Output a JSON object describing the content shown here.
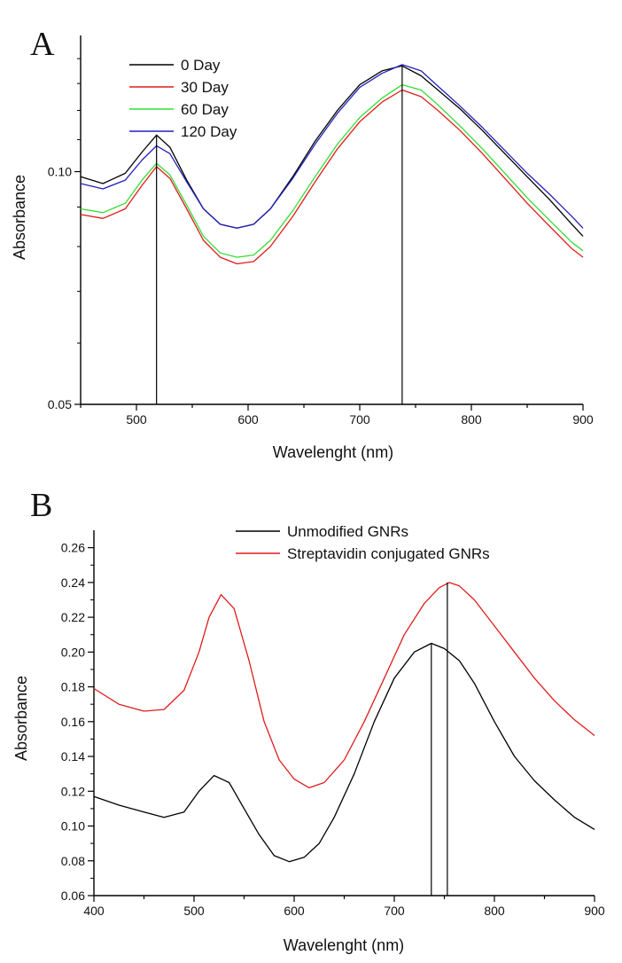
{
  "chart_data": [
    {
      "type": "line",
      "panel": "A",
      "xlabel": "Wavelenght (nm)",
      "ylabel": "Absorbance",
      "xlim": [
        450,
        900
      ],
      "ylim": [
        0.05,
        0.15
      ],
      "y_scale": "log",
      "x_ticks": [
        500,
        600,
        700,
        800,
        900
      ],
      "y_ticks": [
        0.05,
        0.1
      ],
      "y_tick_labels": [
        "0.05",
        "0.10"
      ],
      "legend_position": "top-left",
      "series": [
        {
          "name": "0 Day",
          "color": "#000000",
          "x": [
            450,
            470,
            490,
            505,
            518,
            530,
            545,
            560,
            575,
            590,
            605,
            620,
            640,
            660,
            680,
            700,
            720,
            738,
            755,
            770,
            790,
            810,
            830,
            850,
            870,
            890,
            900
          ],
          "y": [
            0.0985,
            0.0965,
            0.0995,
            0.106,
            0.1115,
            0.1075,
            0.0975,
            0.0895,
            0.0855,
            0.0845,
            0.0855,
            0.0895,
            0.0985,
            0.1095,
            0.12,
            0.1295,
            0.135,
            0.137,
            0.133,
            0.1275,
            0.1205,
            0.113,
            0.1055,
            0.0985,
            0.092,
            0.0855,
            0.0825
          ]
        },
        {
          "name": "30 Day",
          "color": "#e01c1c",
          "x": [
            450,
            470,
            490,
            505,
            518,
            530,
            545,
            560,
            575,
            590,
            605,
            620,
            640,
            660,
            680,
            700,
            720,
            738,
            755,
            770,
            790,
            810,
            830,
            850,
            870,
            890,
            900
          ],
          "y": [
            0.088,
            0.087,
            0.0895,
            0.096,
            0.1015,
            0.098,
            0.0895,
            0.0815,
            0.0775,
            0.076,
            0.0765,
            0.08,
            0.0875,
            0.097,
            0.107,
            0.116,
            0.123,
            0.1275,
            0.125,
            0.12,
            0.113,
            0.1055,
            0.098,
            0.091,
            0.085,
            0.0795,
            0.0775
          ]
        },
        {
          "name": "60 Day",
          "color": "#33dd33",
          "x": [
            450,
            470,
            490,
            505,
            518,
            530,
            545,
            560,
            575,
            590,
            605,
            620,
            640,
            660,
            680,
            700,
            720,
            738,
            755,
            770,
            790,
            810,
            830,
            850,
            870,
            890,
            900
          ],
          "y": [
            0.0895,
            0.0885,
            0.091,
            0.0975,
            0.1025,
            0.099,
            0.0905,
            0.0825,
            0.0785,
            0.0775,
            0.078,
            0.0815,
            0.089,
            0.0985,
            0.1085,
            0.1175,
            0.1245,
            0.1295,
            0.1275,
            0.122,
            0.1145,
            0.107,
            0.0995,
            0.0925,
            0.0865,
            0.081,
            0.079
          ]
        },
        {
          "name": "120 Day",
          "color": "#2222bb",
          "x": [
            450,
            470,
            490,
            505,
            518,
            530,
            545,
            560,
            575,
            590,
            605,
            620,
            640,
            660,
            680,
            700,
            720,
            738,
            755,
            770,
            790,
            810,
            830,
            850,
            870,
            890,
            900
          ],
          "y": [
            0.0965,
            0.095,
            0.0975,
            0.1035,
            0.108,
            0.1055,
            0.097,
            0.0895,
            0.0855,
            0.0845,
            0.0855,
            0.0895,
            0.098,
            0.1085,
            0.119,
            0.1285,
            0.134,
            0.1375,
            0.135,
            0.129,
            0.1215,
            0.114,
            0.1065,
            0.0995,
            0.0935,
            0.0875,
            0.0845
          ]
        }
      ],
      "peak_markers": [
        {
          "x": 518,
          "y": 0.1115
        },
        {
          "x": 738,
          "y": 0.137
        }
      ]
    },
    {
      "type": "line",
      "panel": "B",
      "xlabel": "Wavelenght (nm)",
      "ylabel": "Absorbance",
      "xlim": [
        400,
        900
      ],
      "ylim": [
        0.06,
        0.27
      ],
      "x_ticks": [
        400,
        500,
        600,
        700,
        800,
        900
      ],
      "y_ticks": [
        0.06,
        0.08,
        0.1,
        0.12,
        0.14,
        0.16,
        0.18,
        0.2,
        0.22,
        0.24,
        0.26
      ],
      "y_tick_labels": [
        "0.06",
        "0.08",
        "0.10",
        "0.12",
        "0.14",
        "0.16",
        "0.18",
        "0.20",
        "0.22",
        "0.24",
        "0.26"
      ],
      "legend_position": "top-center",
      "series": [
        {
          "name": "Unmodified GNRs",
          "color": "#000000",
          "x": [
            400,
            425,
            450,
            470,
            490,
            505,
            520,
            535,
            550,
            565,
            580,
            595,
            610,
            625,
            640,
            660,
            680,
            700,
            720,
            737,
            750,
            765,
            780,
            800,
            820,
            840,
            860,
            880,
            900
          ],
          "y": [
            0.117,
            0.112,
            0.108,
            0.105,
            0.108,
            0.12,
            0.129,
            0.125,
            0.11,
            0.095,
            0.083,
            0.0795,
            0.082,
            0.09,
            0.105,
            0.13,
            0.16,
            0.185,
            0.2,
            0.205,
            0.202,
            0.195,
            0.182,
            0.16,
            0.14,
            0.126,
            0.115,
            0.105,
            0.098
          ]
        },
        {
          "name": "Streptavidin conjugated GNRs",
          "color": "#e01c1c",
          "x": [
            400,
            425,
            450,
            470,
            490,
            505,
            515,
            527,
            540,
            555,
            570,
            585,
            600,
            615,
            630,
            650,
            670,
            690,
            710,
            730,
            745,
            755,
            765,
            780,
            800,
            820,
            840,
            860,
            880,
            900
          ],
          "y": [
            0.179,
            0.17,
            0.166,
            0.167,
            0.178,
            0.2,
            0.22,
            0.233,
            0.225,
            0.195,
            0.16,
            0.138,
            0.127,
            0.122,
            0.125,
            0.138,
            0.16,
            0.185,
            0.21,
            0.228,
            0.237,
            0.24,
            0.238,
            0.23,
            0.215,
            0.2,
            0.185,
            0.172,
            0.161,
            0.152
          ]
        }
      ],
      "peak_markers": [
        {
          "x": 737,
          "y": 0.205
        },
        {
          "x": 753,
          "y": 0.24
        }
      ]
    }
  ]
}
